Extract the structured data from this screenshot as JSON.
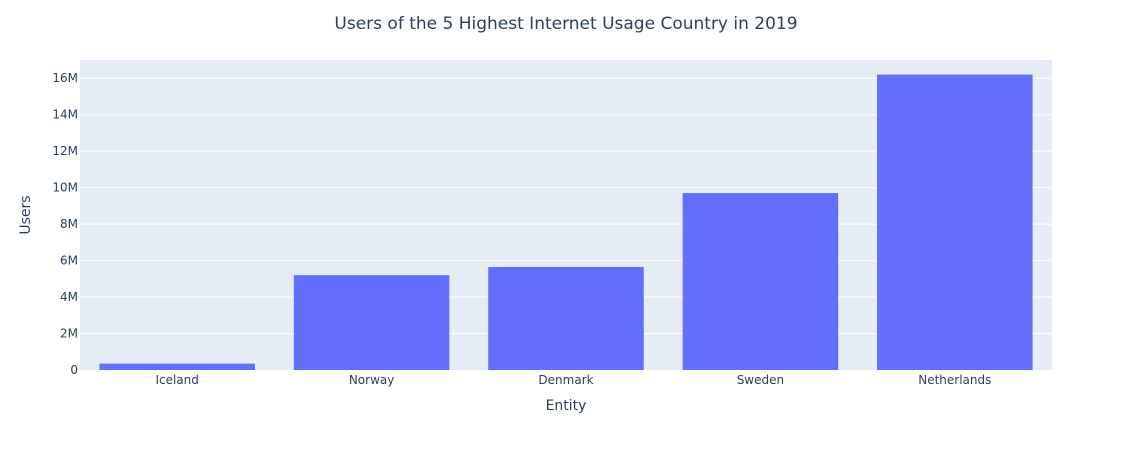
{
  "chart_data": {
    "type": "bar",
    "title": "Users of the 5 Highest Internet Usage Country in 2019",
    "xlabel": "Entity",
    "ylabel": "Users",
    "categories": [
      "Iceland",
      "Norway",
      "Denmark",
      "Sweden",
      "Netherlands"
    ],
    "values": [
      350000,
      5200000,
      5650000,
      9700000,
      16200000
    ],
    "ylim": [
      0,
      17000000
    ],
    "yticks": [
      0,
      2000000,
      4000000,
      6000000,
      8000000,
      10000000,
      12000000,
      14000000,
      16000000
    ],
    "ytick_labels": [
      "0",
      "2M",
      "4M",
      "6M",
      "8M",
      "10M",
      "12M",
      "14M",
      "16M"
    ],
    "grid": true,
    "colors": {
      "bar": "#636efa",
      "plot_bg": "#e5ecf6",
      "grid": "#ffffff",
      "text": "#2a3f5f"
    }
  }
}
